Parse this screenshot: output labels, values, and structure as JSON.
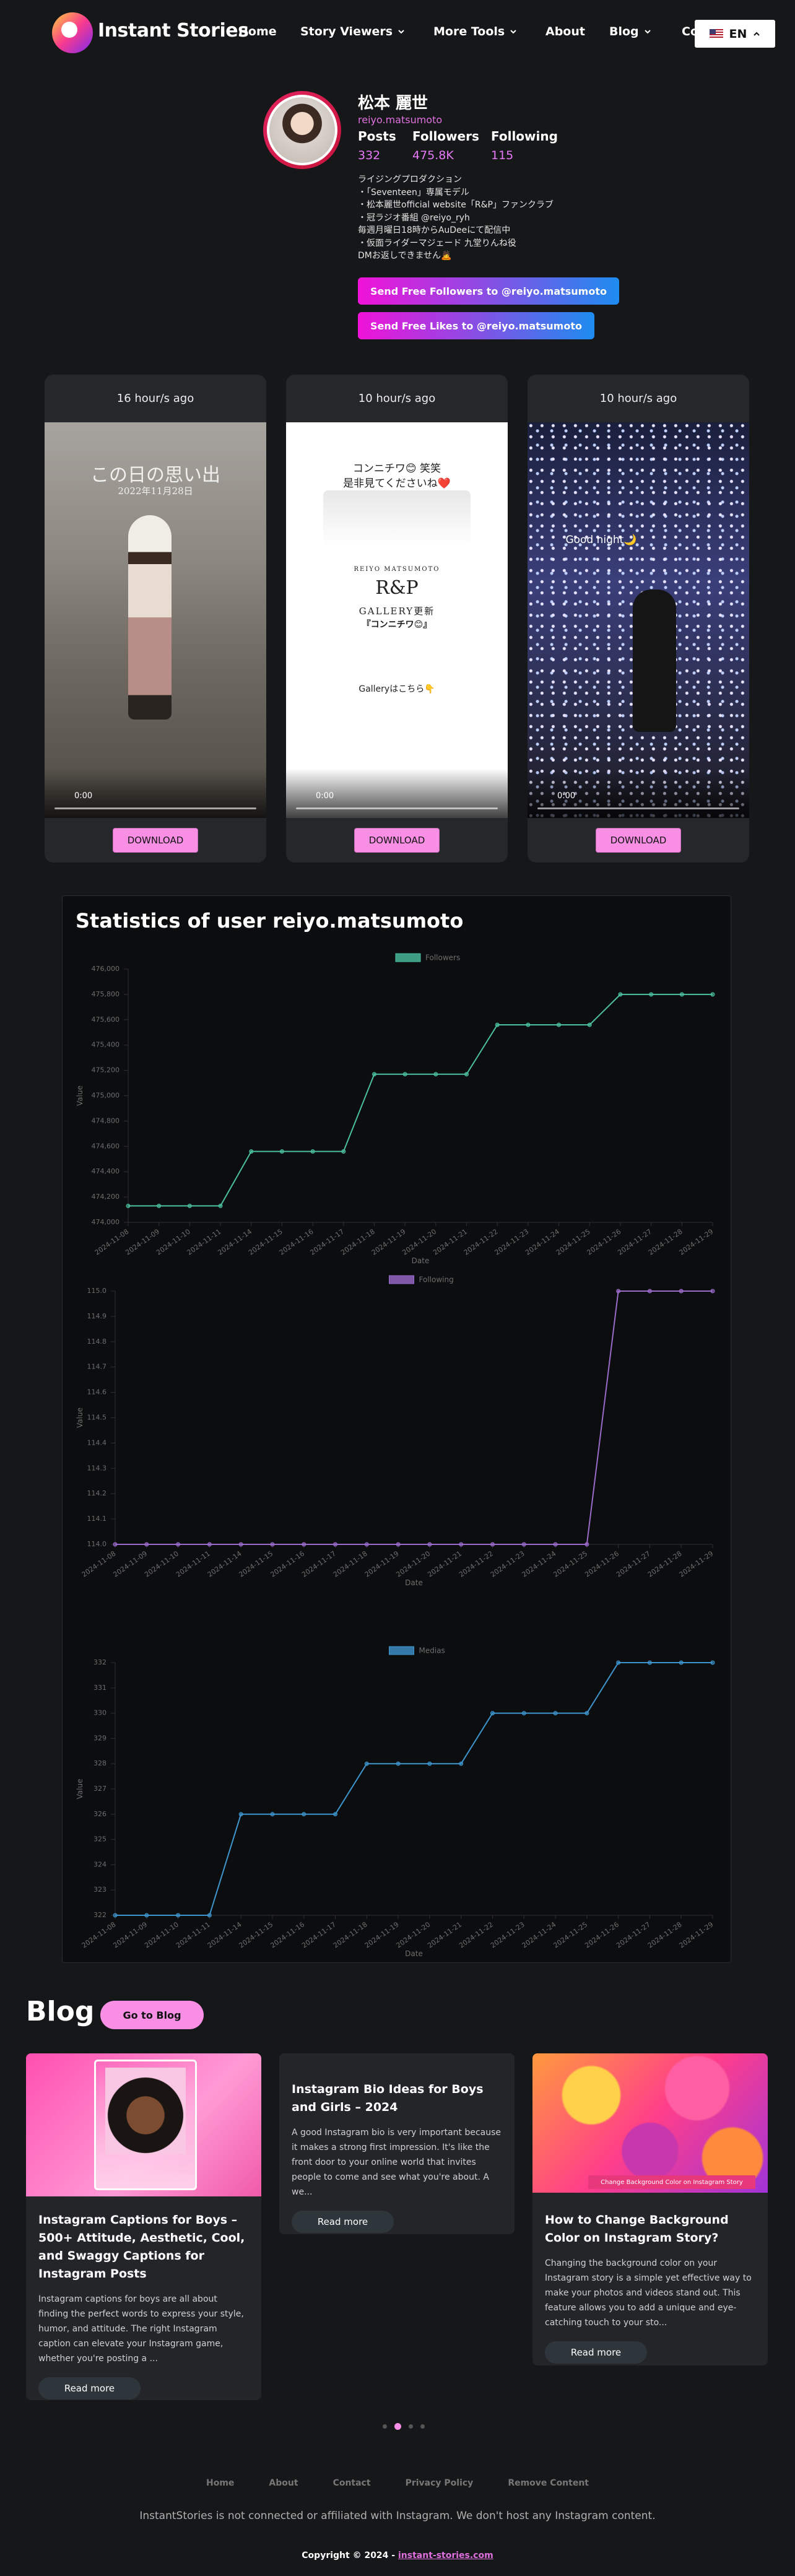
{
  "header": {
    "brand": "Instant Stories",
    "nav": [
      "Home",
      "Story Viewers",
      "More Tools",
      "About",
      "Blog",
      "Contact"
    ],
    "language": "EN"
  },
  "profile": {
    "name": "松本 麗世",
    "username": "reiyo.matsumoto",
    "stats": [
      {
        "label": "Posts",
        "value": "332"
      },
      {
        "label": "Followers",
        "value": "475.8K"
      },
      {
        "label": "Following",
        "value": "115"
      }
    ],
    "bio": [
      "ライジングプロダクション",
      "・「Seventeen」専属モデル",
      "・松本麗世official website「R&P」ファンクラブ",
      "・冠ラジオ番組 @reiyo_ryh",
      "毎週月曜日18時からAuDeeにて配信中",
      "・仮面ライダーマジェード 九堂りんね役",
      "DMお返しできません🙇"
    ],
    "buttons": [
      "Send Free Followers to @reiyo.matsumoto",
      "Send Free Likes to @reiyo.matsumoto"
    ]
  },
  "stories": [
    {
      "time": "16 hour/s ago",
      "overlay": [
        "この日の思い出",
        "2022年11月28日"
      ],
      "player_time": "0:00",
      "button": "DOWNLOAD"
    },
    {
      "time": "10 hour/s ago",
      "overlay": [
        "コンニチワ😊 笑笑",
        "是非見てくださいね❤️",
        "REIYO MATSUMOTO",
        "R&P",
        "GALLERY更新",
        "『コンニチワ😊』",
        "Galleryはこちら👇"
      ],
      "player_time": "0:00",
      "button": "DOWNLOAD"
    },
    {
      "time": "10 hour/s ago",
      "overlay": [
        "Good night🌙"
      ],
      "player_time": "0:00",
      "button": "DOWNLOAD"
    }
  ],
  "statistics": {
    "title": "Statistics of user reiyo.matsumoto"
  },
  "chart_data": [
    {
      "type": "line",
      "categories": [
        "2024-11-08",
        "2024-11-09",
        "2024-11-10",
        "2024-11-11",
        "2024-11-14",
        "2024-11-15",
        "2024-11-16",
        "2024-11-17",
        "2024-11-18",
        "2024-11-19",
        "2024-11-20",
        "2024-11-21",
        "2024-11-22",
        "2024-11-23",
        "2024-11-24",
        "2024-11-25",
        "2024-11-26",
        "2024-11-27",
        "2024-11-28",
        "2024-11-29"
      ],
      "series": [
        {
          "name": "Followers",
          "color": "#4bc0a0",
          "values": [
            474130,
            474130,
            474130,
            474130,
            474560,
            474560,
            474560,
            474560,
            475170,
            475170,
            475170,
            475170,
            475560,
            475560,
            475560,
            475560,
            475800,
            475800,
            475800,
            475800
          ]
        }
      ],
      "ylim": [
        474000,
        476000
      ],
      "yticks": [
        {
          "value": 474000,
          "label": "474,000"
        },
        {
          "value": 474200,
          "label": "474,200"
        },
        {
          "value": 474400,
          "label": "474,400"
        },
        {
          "value": 474600,
          "label": "474,600"
        },
        {
          "value": 474800,
          "label": "474,800"
        },
        {
          "value": 475000,
          "label": "475,000"
        },
        {
          "value": 475200,
          "label": "475,200"
        },
        {
          "value": 475400,
          "label": "475,400"
        },
        {
          "value": 475600,
          "label": "475,600"
        },
        {
          "value": 475800,
          "label": "475,800"
        },
        {
          "value": 476000,
          "label": "476,000"
        }
      ],
      "xlabel": "Date",
      "ylabel": "Value",
      "legend": "top",
      "grid": false
    },
    {
      "type": "line",
      "categories": [
        "2024-11-08",
        "2024-11-09",
        "2024-11-10",
        "2024-11-11",
        "2024-11-14",
        "2024-11-15",
        "2024-11-16",
        "2024-11-17",
        "2024-11-18",
        "2024-11-19",
        "2024-11-20",
        "2024-11-21",
        "2024-11-22",
        "2024-11-23",
        "2024-11-24",
        "2024-11-25",
        "2024-11-26",
        "2024-11-27",
        "2024-11-28",
        "2024-11-29"
      ],
      "series": [
        {
          "name": "Following",
          "color": "#9b6bcc",
          "values": [
            114,
            114,
            114,
            114,
            114,
            114,
            114,
            114,
            114,
            114,
            114,
            114,
            114,
            114,
            114,
            114,
            115,
            115,
            115,
            115
          ]
        }
      ],
      "ylim": [
        114,
        115
      ],
      "yticks": [
        {
          "value": 114,
          "label": "114.0"
        },
        114.1,
        114.2,
        114.3,
        114.4,
        114.5,
        114.6,
        114.7,
        114.8,
        114.9,
        {
          "value": 115,
          "label": "115.0"
        }
      ],
      "xlabel": "Date",
      "ylabel": "Value",
      "legend": "top",
      "grid": false
    },
    {
      "type": "line",
      "categories": [
        "2024-11-08",
        "2024-11-09",
        "2024-11-10",
        "2024-11-11",
        "2024-11-14",
        "2024-11-15",
        "2024-11-16",
        "2024-11-17",
        "2024-11-18",
        "2024-11-19",
        "2024-11-20",
        "2024-11-21",
        "2024-11-22",
        "2024-11-23",
        "2024-11-24",
        "2024-11-25",
        "2024-11-26",
        "2024-11-27",
        "2024-11-28",
        "2024-11-29"
      ],
      "series": [
        {
          "name": "Medias",
          "color": "#3e95cd",
          "values": [
            322,
            322,
            322,
            322,
            326,
            326,
            326,
            326,
            328,
            328,
            328,
            328,
            330,
            330,
            330,
            330,
            332,
            332,
            332,
            332
          ]
        }
      ],
      "ylim": [
        322,
        332
      ],
      "yticks": [
        322,
        323,
        324,
        325,
        326,
        327,
        328,
        329,
        330,
        331,
        332
      ],
      "xlabel": "Date",
      "ylabel": "Value",
      "legend": "top",
      "grid": false
    }
  ],
  "blog": {
    "title": "Blog",
    "button": "Go to Blog",
    "posts": [
      {
        "title": "Instagram Captions for Boys – 500+ Attitude, Aesthetic, Cool, and Swaggy Captions for Instagram Posts",
        "excerpt": "Instagram captions for boys are all about finding the perfect words to express your style, humor, and attitude. The right Instagram caption can elevate your Instagram game, whether you're posting a ...",
        "button": "Read more"
      },
      {
        "title": "Instagram Bio Ideas for Boys and Girls – 2024",
        "excerpt": "A good Instagram bio is very important because it makes a strong first impression. It's like the front door to your online world that invites people to come and see what you're about. A we...",
        "button": "Read more"
      },
      {
        "title": "How to Change Background Color on Instagram Story?",
        "excerpt": "Changing the background color on your Instagram story is a simple yet effective way to make your photos and videos stand out. This feature allows you to add a unique and eye-catching touch to your sto...",
        "button": "Read more",
        "image_caption": "Change Background Color on Instagram Story"
      }
    ]
  },
  "footer": {
    "links": [
      "Home",
      "About",
      "Contact",
      "Privacy Policy",
      "Remove Content"
    ],
    "disclaimer": "InstantStories is not connected or affiliated with Instagram. We don't host any Instagram content.",
    "copyright": "Copyright © 2024 -",
    "site": "instant-stories.com"
  }
}
